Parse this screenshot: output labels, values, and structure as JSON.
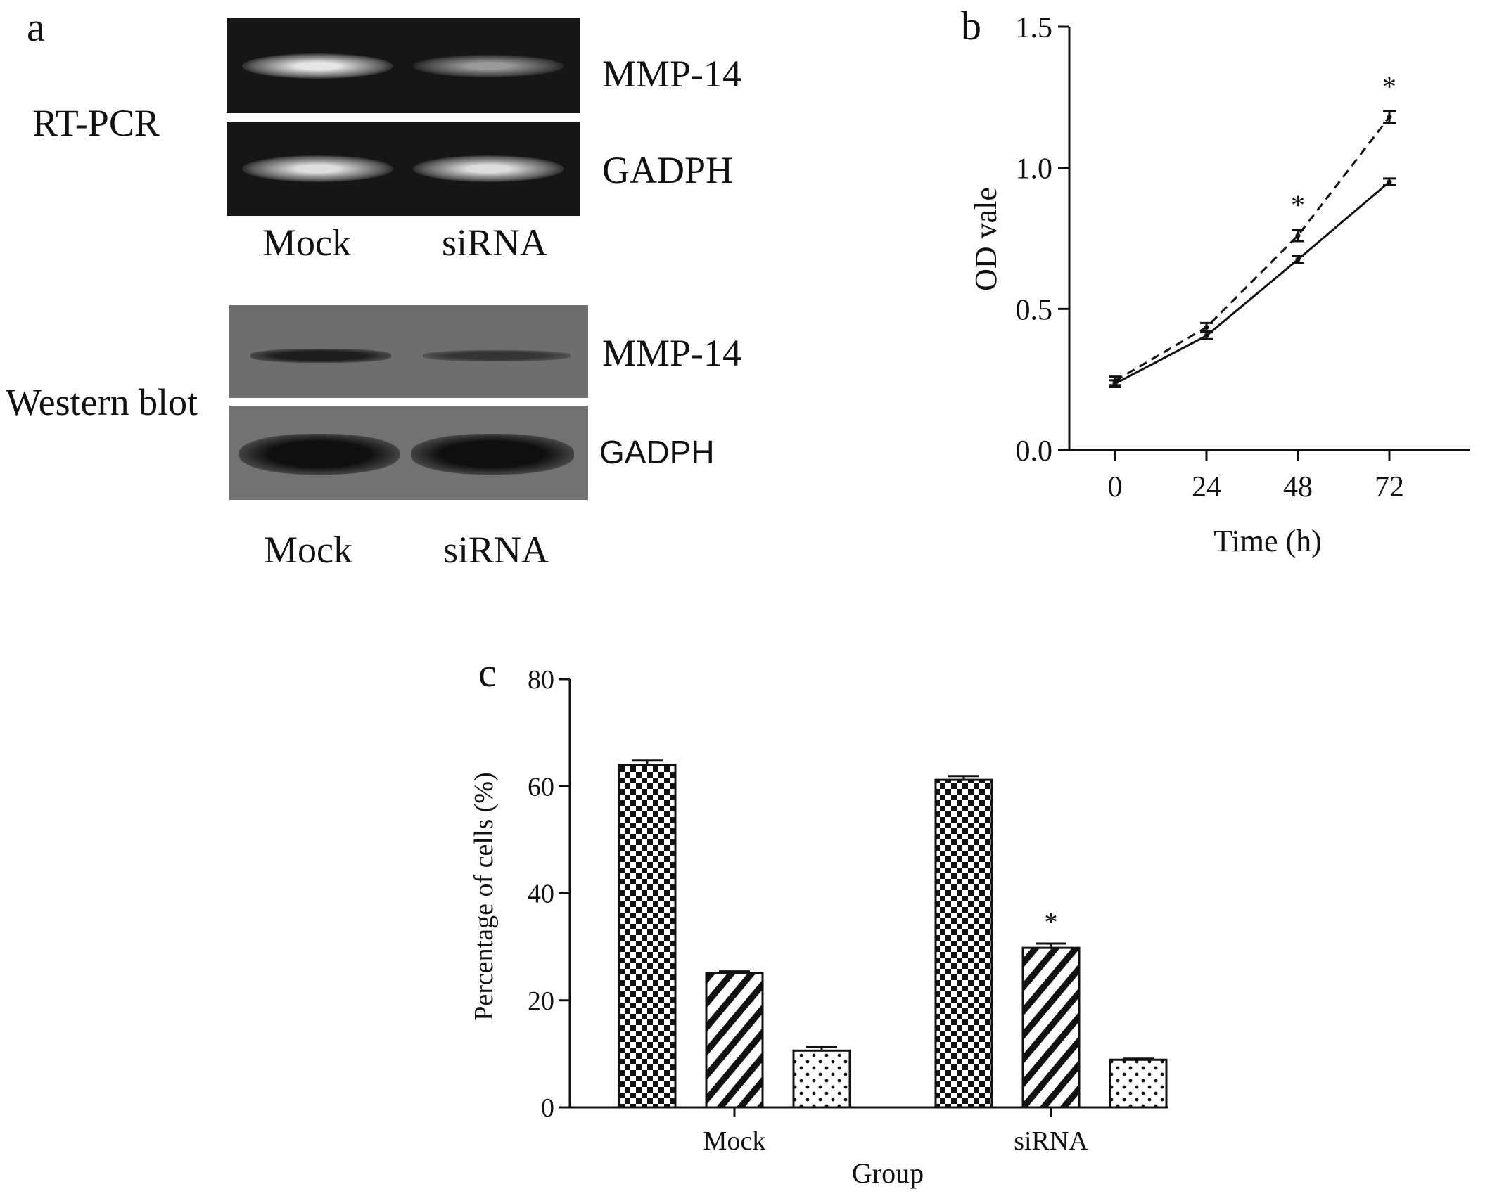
{
  "panel_a": {
    "letter": "a",
    "rtpcr": {
      "method_label": "RT-PCR",
      "bands": [
        {
          "label": "MMP-14",
          "intensity": [
            1.0,
            0.55
          ]
        },
        {
          "label": "GADPH",
          "intensity": [
            0.95,
            0.95
          ]
        }
      ],
      "lanes": [
        "Mock",
        "siRNA"
      ]
    },
    "western": {
      "method_label": "Western blot",
      "bands": [
        {
          "label": "MMP-14",
          "intensity": [
            0.85,
            0.6
          ]
        },
        {
          "label": "GADPH",
          "intensity": [
            1.0,
            1.0
          ]
        }
      ],
      "lanes": [
        "Mock",
        "siRNA"
      ]
    }
  },
  "chart_data": [
    {
      "panel": "b",
      "type": "line",
      "x": [
        0,
        24,
        48,
        72
      ],
      "xticks": [
        "0",
        "24",
        "48",
        "72"
      ],
      "xlabel": "Time (h)",
      "ylabel": "OD vale",
      "ylim": [
        0.0,
        1.5
      ],
      "yticks": [
        "0.0",
        "0.5",
        "1.0",
        "1.5"
      ],
      "series": [
        {
          "line_style": "dashed",
          "values": [
            0.245,
            0.435,
            0.76,
            1.18
          ],
          "err": [
            0.015,
            0.015,
            0.02,
            0.02
          ]
        },
        {
          "line_style": "solid",
          "values": [
            0.235,
            0.405,
            0.675,
            0.95
          ],
          "err": [
            0.012,
            0.012,
            0.012,
            0.012
          ]
        }
      ],
      "annotations": [
        {
          "x": 48,
          "text": "*"
        },
        {
          "x": 72,
          "text": "*"
        }
      ]
    },
    {
      "panel": "c",
      "type": "bar",
      "categories": [
        "Mock",
        "siRNA"
      ],
      "xlabel": "Group",
      "ylabel": "Percentage of cells (%)",
      "ylim": [
        0,
        80
      ],
      "yticks": [
        "0",
        "20",
        "40",
        "60",
        "80"
      ],
      "series": [
        {
          "pattern": "checker",
          "values": [
            64.0,
            61.2
          ],
          "err": [
            0.8,
            0.7
          ]
        },
        {
          "pattern": "diagonal",
          "values": [
            25.1,
            29.8
          ],
          "err": [
            0.3,
            0.8
          ]
        },
        {
          "pattern": "dots",
          "values": [
            10.6,
            8.9
          ],
          "err": [
            0.7,
            0.2
          ]
        }
      ],
      "annotations": [
        {
          "category": "siRNA",
          "series": 1,
          "text": "*"
        }
      ]
    }
  ],
  "panel_b_letter": "b",
  "panel_c_letter": "c"
}
